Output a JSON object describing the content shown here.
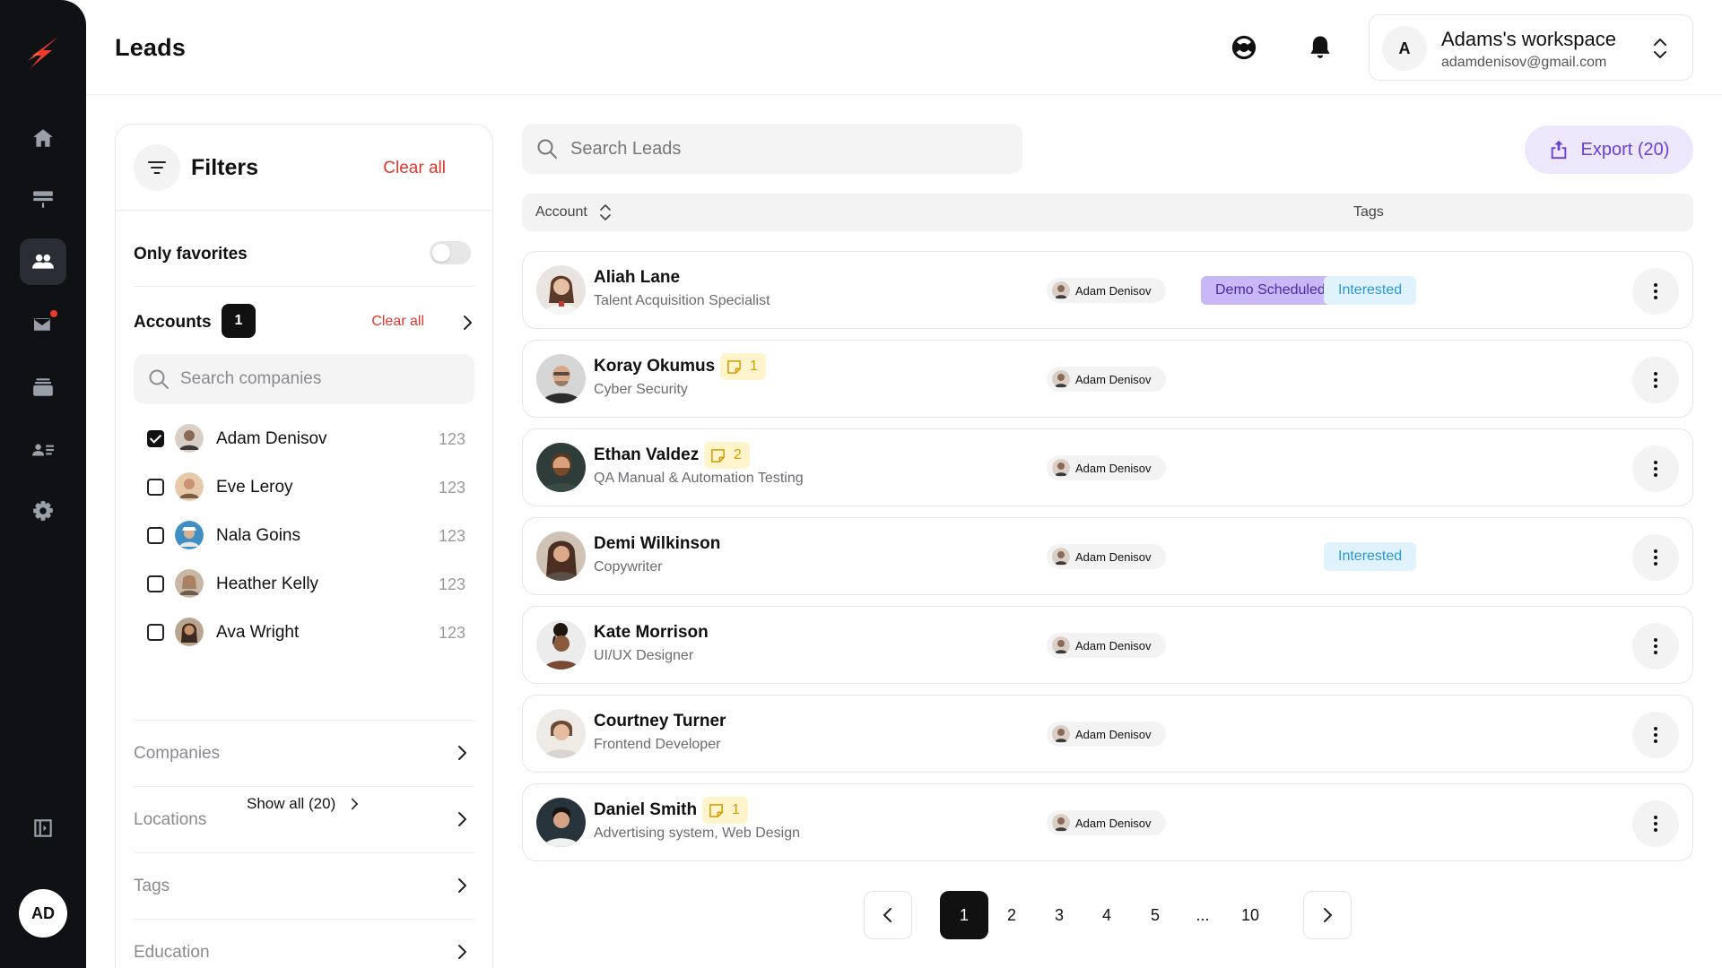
{
  "header": {
    "title": "Leads",
    "workspace": {
      "avatar_letter": "A",
      "name": "Adams's workspace",
      "email": "adamdenisov@gmail.com"
    }
  },
  "rail": {
    "user_initials": "AD",
    "items": [
      "home-icon",
      "layout-icon",
      "users-icon",
      "mail-icon",
      "stack-icon",
      "contacts-icon",
      "gear-icon"
    ],
    "active": "users-icon"
  },
  "filters": {
    "title": "Filters",
    "clear_all": "Clear all",
    "only_favorites": "Only favorites",
    "favorites_on": false,
    "accounts": {
      "label": "Accounts",
      "count": "1",
      "clear_all": "Clear all",
      "search_placeholder": "Search companies",
      "items": [
        {
          "name": "Adam Denisov",
          "count": "123",
          "checked": true
        },
        {
          "name": "Eve Leroy",
          "count": "123",
          "checked": false
        },
        {
          "name": "Nala Goins",
          "count": "123",
          "checked": false
        },
        {
          "name": "Heather Kelly",
          "count": "123",
          "checked": false
        },
        {
          "name": "Ava Wright",
          "count": "123",
          "checked": false
        }
      ],
      "show_all": "Show all (20)"
    },
    "sections": [
      "Companies",
      "Locations",
      "Tags",
      "Education"
    ]
  },
  "main": {
    "search_placeholder": "Search Leads",
    "export_label": "Export (20)",
    "columns": {
      "account": "Account",
      "tags": "Tags"
    },
    "leads": [
      {
        "name": "Aliah Lane",
        "role": "Talent Acquisition Specialist",
        "note": "",
        "owner": "Adam Denisov",
        "tags": [
          "Demo Scheduled",
          "Interested"
        ]
      },
      {
        "name": "Koray Okumus",
        "role": "Cyber Security",
        "note": "1",
        "owner": "Adam Denisov",
        "tags": []
      },
      {
        "name": "Ethan Valdez",
        "role": "QA Manual & Automation Testing",
        "note": "2",
        "owner": "Adam Denisov",
        "tags": []
      },
      {
        "name": "Demi Wilkinson",
        "role": "Copywriter",
        "note": "",
        "owner": "Adam Denisov",
        "tags": [
          "Interested"
        ]
      },
      {
        "name": "Kate Morrison",
        "role": "UI/UX Designer",
        "note": "",
        "owner": "Adam Denisov",
        "tags": []
      },
      {
        "name": "Courtney Turner",
        "role": "Frontend Developer",
        "note": "",
        "owner": "Adam Denisov",
        "tags": []
      },
      {
        "name": "Daniel Smith",
        "role": "Advertising system, Web Design",
        "note": "1",
        "owner": "Adam Denisov",
        "tags": []
      }
    ],
    "pagination": {
      "pages": [
        "1",
        "2",
        "3",
        "4",
        "5",
        "...",
        "10"
      ],
      "current": "1"
    }
  },
  "colors": {
    "accent": "#6b3fd6",
    "danger": "#e2352b",
    "rail": "#0f1115",
    "note_bg": "#fff4cc",
    "tag_demo": "#c9b8f6",
    "tag_interested": "#e0f3fd"
  }
}
